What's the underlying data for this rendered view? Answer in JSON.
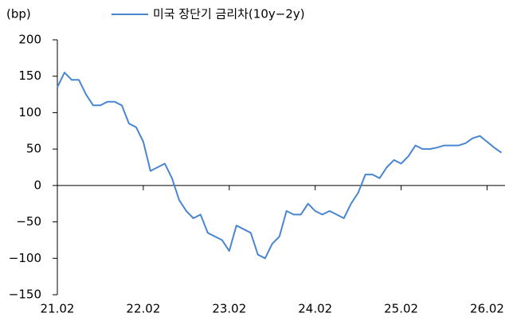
{
  "chart_data": {
    "type": "line",
    "y_label": "(bp)",
    "x": [
      "21.02",
      "21.03",
      "21.04",
      "21.05",
      "21.06",
      "21.07",
      "21.08",
      "21.09",
      "21.10",
      "21.11",
      "21.12",
      "22.01",
      "22.02",
      "22.03",
      "22.04",
      "22.05",
      "22.06",
      "22.07",
      "22.08",
      "22.09",
      "22.10",
      "22.11",
      "22.12",
      "23.01",
      "23.02",
      "23.03",
      "23.04",
      "23.05",
      "23.06",
      "23.07",
      "23.08",
      "23.09",
      "23.10",
      "23.11",
      "23.12",
      "24.01",
      "24.02",
      "24.03",
      "24.04",
      "24.05",
      "24.06",
      "24.07",
      "24.08",
      "24.09",
      "24.10",
      "24.11",
      "24.12",
      "25.01",
      "25.02",
      "25.03",
      "25.04",
      "25.05",
      "25.06",
      "25.07",
      "25.08",
      "25.09",
      "25.10",
      "25.11",
      "25.12",
      "26.01",
      "26.02",
      "26.03",
      "26.04"
    ],
    "series": [
      {
        "name": "미국 장단기 금리차(10y−2y)",
        "color": "#4a86d0",
        "values": [
          135,
          155,
          145,
          145,
          125,
          110,
          110,
          115,
          115,
          110,
          85,
          80,
          60,
          20,
          25,
          30,
          10,
          -20,
          -35,
          -45,
          -40,
          -65,
          -70,
          -75,
          -90,
          -55,
          -60,
          -65,
          -95,
          -100,
          -80,
          -70,
          -35,
          -40,
          -40,
          -25,
          -35,
          -40,
          -35,
          -40,
          -45,
          -25,
          -10,
          15,
          15,
          10,
          25,
          35,
          30,
          40,
          55,
          50,
          50,
          52,
          55,
          55,
          55,
          58,
          65,
          68,
          60,
          52,
          45
        ]
      }
    ],
    "xticks": [
      "21.02",
      "22.02",
      "23.02",
      "24.02",
      "25.02",
      "26.02"
    ],
    "ylim": [
      -150,
      200
    ],
    "yticks": [
      200,
      150,
      100,
      50,
      0,
      {
        "value": -50,
        "label": "−50"
      },
      {
        "value": -100,
        "label": "−100"
      },
      {
        "value": -150,
        "label": "−150"
      }
    ],
    "legend": "top"
  }
}
